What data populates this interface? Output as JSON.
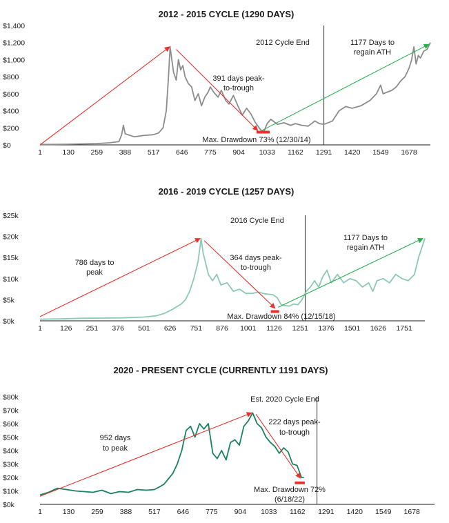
{
  "chart_data": [
    {
      "type": "line",
      "title": "2012 - 2015 CYCLE (1290 DAYS)",
      "line_color": "#8c8c8c",
      "ylim": [
        0,
        1400
      ],
      "xlim": [
        1,
        1775
      ],
      "y_ticks": [
        0,
        200,
        400,
        600,
        800,
        1000,
        1200,
        1400
      ],
      "y_tick_labels": [
        "$0",
        "$200",
        "$400",
        "$600",
        "$800",
        "$1,000",
        "$1,200",
        "$1,400"
      ],
      "x_ticks": [
        1,
        130,
        259,
        388,
        517,
        646,
        775,
        904,
        1033,
        1162,
        1291,
        1420,
        1549,
        1678
      ],
      "x_tick_labels": [
        "1",
        "130",
        "259",
        "388",
        "517",
        "646",
        "775",
        "904",
        "1033",
        "1162",
        "1291",
        "1420",
        "1549",
        "1678"
      ],
      "series": [
        {
          "x": [
            1,
            60,
            130,
            200,
            259,
            320,
            360,
            372,
            380,
            388,
            430,
            470,
            517,
            540,
            560,
            575,
            585,
            592,
            600,
            608,
            620,
            630,
            640,
            650,
            660,
            675,
            690,
            705,
            720,
            735,
            750,
            765,
            775,
            790,
            810,
            825,
            845,
            860,
            880,
            900,
            920,
            940,
            960,
            980,
            1000,
            1010,
            1020,
            1033,
            1050,
            1080,
            1110,
            1140,
            1162,
            1190,
            1220,
            1250,
            1270,
            1291,
            1330,
            1360,
            1390,
            1420,
            1460,
            1500,
            1530,
            1549,
            1560,
            1580,
            1600,
            1620,
            1640,
            1660,
            1678,
            1690,
            1700,
            1710,
            1720,
            1730,
            1745,
            1760,
            1775
          ],
          "values": [
            5,
            6,
            8,
            12,
            15,
            25,
            40,
            120,
            230,
            130,
            95,
            110,
            120,
            140,
            200,
            400,
            800,
            1150,
            1000,
            850,
            760,
            1000,
            880,
            930,
            800,
            720,
            680,
            520,
            600,
            460,
            560,
            620,
            680,
            620,
            560,
            640,
            520,
            480,
            580,
            460,
            350,
            430,
            360,
            260,
            190,
            160,
            165,
            250,
            300,
            240,
            260,
            230,
            250,
            230,
            220,
            280,
            250,
            240,
            280,
            400,
            450,
            430,
            460,
            520,
            600,
            700,
            600,
            620,
            640,
            680,
            750,
            800,
            900,
            1000,
            1150,
            950,
            1050,
            1020,
            1100,
            1120,
            1200
          ]
        }
      ],
      "arrows": [
        {
          "color": "red",
          "from": [
            1,
            0
          ],
          "to": [
            590,
            1150
          ]
        },
        {
          "color": "red",
          "from": [
            620,
            1120
          ],
          "to": [
            990,
            170
          ]
        },
        {
          "color": "green",
          "from": [
            1010,
            170
          ],
          "to": [
            1768,
            1180
          ]
        }
      ],
      "drawdown_marker": {
        "x": [
          985,
          1045
        ],
        "y": 150
      },
      "cycle_end_x": 1291,
      "labels": {
        "cycle_end": "2012 Cycle End",
        "regain_1": "1177 Days to",
        "regain_2": "regain ATH",
        "peak_trough_1": "391 days peak-",
        "peak_trough_2": "to-trough",
        "drawdown": "Max. Drawdown 73% (12/30/14)"
      }
    },
    {
      "type": "line",
      "title": "2016 - 2019 CYCLE (1257 DAYS)",
      "line_color": "#8cc9b3",
      "ylim": [
        0,
        25000
      ],
      "xlim": [
        1,
        1850
      ],
      "y_ticks": [
        0,
        5000,
        10000,
        15000,
        20000,
        25000
      ],
      "y_tick_labels": [
        "$0k",
        "$5k",
        "$10k",
        "$15k",
        "$20k",
        "$25k"
      ],
      "x_ticks": [
        1,
        126,
        251,
        376,
        501,
        626,
        751,
        876,
        1001,
        1126,
        1251,
        1376,
        1501,
        1626,
        1751
      ],
      "x_tick_labels": [
        "1",
        "126",
        "251",
        "376",
        "501",
        "626",
        "751",
        "876",
        "1001",
        "1126",
        "1251",
        "1376",
        "1501",
        "1626",
        "1751"
      ],
      "series": [
        {
          "x": [
            1,
            100,
            200,
            300,
            400,
            500,
            560,
            600,
            640,
            680,
            700,
            720,
            740,
            760,
            775,
            785,
            795,
            810,
            830,
            850,
            870,
            900,
            930,
            960,
            990,
            1020,
            1050,
            1080,
            1100,
            1120,
            1140,
            1160,
            1180,
            1200,
            1220,
            1240,
            1260,
            1280,
            1300,
            1320,
            1340,
            1360,
            1380,
            1400,
            1430,
            1460,
            1490,
            1520,
            1550,
            1580,
            1600,
            1620,
            1650,
            1680,
            1710,
            1740,
            1770,
            1800,
            1820,
            1840,
            1850
          ],
          "values": [
            400,
            450,
            600,
            650,
            700,
            900,
            1200,
            1800,
            2800,
            4000,
            5000,
            7000,
            10000,
            14000,
            19500,
            16000,
            14000,
            11000,
            9500,
            11000,
            8500,
            9000,
            7000,
            7500,
            6500,
            6500,
            6800,
            6400,
            6300,
            6200,
            5500,
            3800,
            3600,
            3500,
            4000,
            3800,
            5000,
            7000,
            8000,
            9500,
            8000,
            10500,
            12000,
            9000,
            11000,
            9000,
            10000,
            9500,
            8000,
            9000,
            7000,
            9500,
            10000,
            9000,
            11000,
            10000,
            9500,
            11000,
            15000,
            18000,
            19500
          ]
        }
      ],
      "arrows": [
        {
          "color": "red",
          "from": [
            1,
            1000
          ],
          "to": [
            770,
            19500
          ]
        },
        {
          "color": "red",
          "from": [
            790,
            19000
          ],
          "to": [
            1130,
            3000
          ]
        },
        {
          "color": "green",
          "from": [
            1145,
            3200
          ],
          "to": [
            1840,
            19500
          ]
        }
      ],
      "drawdown_marker": {
        "x": [
          1110,
          1150
        ],
        "y": 2200
      },
      "cycle_end_x": 1275,
      "labels": {
        "cycle_end": "2016 Cycle End",
        "regain_1": "1177 Days to",
        "regain_2": "regain ATH",
        "to_peak_1": "786 days to",
        "to_peak_2": "peak",
        "peak_trough_1": "364 days peak-",
        "peak_trough_2": "to-trough",
        "drawdown": "Max. Drawdown 84% (12/15/18)"
      }
    },
    {
      "type": "line",
      "title": "2020 - PRESENT CYCLE (CURRENTLY 1191 DAYS)",
      "line_color": "#17825f",
      "ylim": [
        0,
        80000
      ],
      "xlim": [
        1,
        1780
      ],
      "y_ticks": [
        0,
        10000,
        20000,
        30000,
        40000,
        50000,
        60000,
        70000,
        80000
      ],
      "y_tick_labels": [
        "$0k",
        "$10k",
        "$20k",
        "$30k",
        "$40k",
        "$50k",
        "$60k",
        "$70k",
        "$80k"
      ],
      "x_ticks": [
        1,
        130,
        259,
        388,
        517,
        646,
        775,
        904,
        1033,
        1162,
        1291,
        1420,
        1549,
        1678
      ],
      "x_tick_labels": [
        "1",
        "130",
        "259",
        "388",
        "517",
        "646",
        "775",
        "904",
        "1033",
        "1162",
        "1291",
        "1420",
        "1549",
        "1678"
      ],
      "series": [
        {
          "x": [
            1,
            40,
            80,
            120,
            160,
            200,
            240,
            280,
            320,
            360,
            400,
            440,
            480,
            517,
            540,
            560,
            580,
            600,
            620,
            640,
            660,
            680,
            700,
            720,
            740,
            760,
            780,
            800,
            820,
            840,
            860,
            880,
            900,
            920,
            940,
            960,
            980,
            1000,
            1020,
            1040,
            1060,
            1080,
            1100,
            1120,
            1140,
            1160,
            1180,
            1191
          ],
          "values": [
            7000,
            9000,
            12000,
            11000,
            10000,
            9500,
            9000,
            10500,
            8000,
            9500,
            9000,
            11000,
            10500,
            11000,
            13000,
            15000,
            19000,
            23000,
            30000,
            40000,
            55000,
            58000,
            50000,
            60000,
            56000,
            60000,
            38000,
            34000,
            40000,
            33000,
            46000,
            48000,
            44000,
            58000,
            62000,
            68000,
            60000,
            57000,
            50000,
            46000,
            43000,
            38000,
            42000,
            39000,
            30000,
            29000,
            20000,
            20000
          ]
        }
      ],
      "arrows": [
        {
          "color": "red",
          "from": [
            1,
            6000
          ],
          "to": [
            955,
            68000
          ]
        },
        {
          "color": "red",
          "from": [
            975,
            67000
          ],
          "to": [
            1175,
            19500
          ]
        }
      ],
      "drawdown_marker": {
        "x": [
          1150,
          1195
        ],
        "y": 16000
      },
      "cycle_end_x": 1250,
      "labels": {
        "cycle_end": "Est. 2020 Cycle End",
        "to_peak_1": "952 days",
        "to_peak_2": "to peak",
        "peak_trough_1": "222 days peak-",
        "peak_trough_2": "to-trough",
        "drawdown_1": "Max. Drawdown 72%",
        "drawdown_2": "(6/18/22)"
      }
    }
  ]
}
